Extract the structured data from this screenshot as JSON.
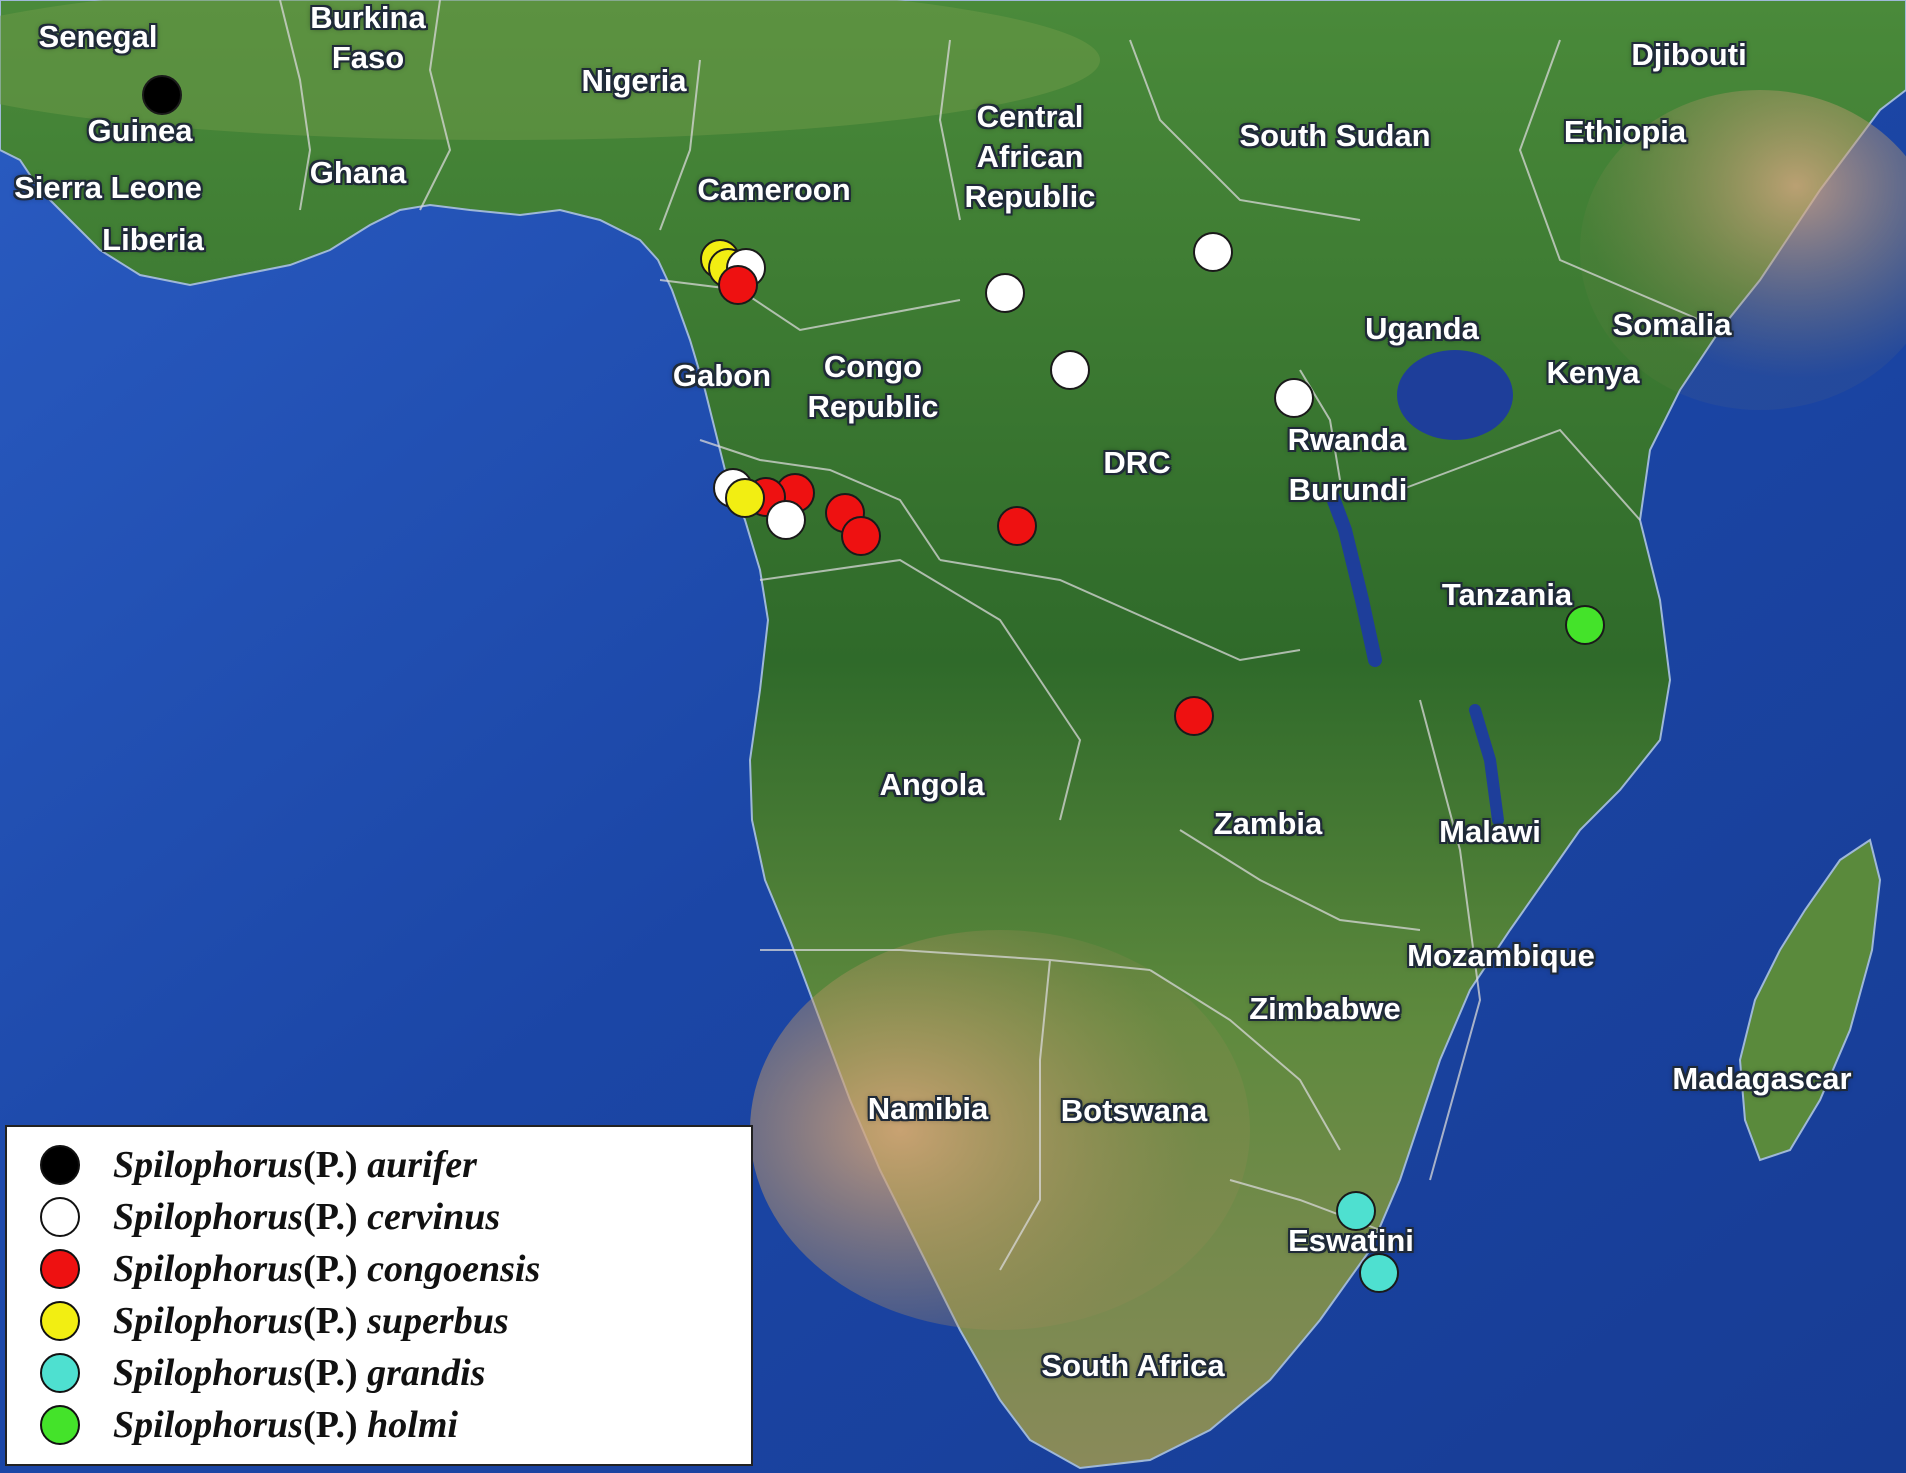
{
  "map": {
    "colors": {
      "ocean": "#1e48a8",
      "land": "#3f7a32",
      "desert": "#c8a27a",
      "border": "#d8d8d8"
    },
    "country_labels": [
      {
        "id": "senegal",
        "text": "Senegal"
      },
      {
        "id": "burkina-faso",
        "text": "Burkina\nFaso"
      },
      {
        "id": "nigeria",
        "text": "Nigeria"
      },
      {
        "id": "djibouti",
        "text": "Djibouti"
      },
      {
        "id": "guinea",
        "text": "Guinea"
      },
      {
        "id": "central-african-republic",
        "text": "Central\nAfrican\nRepublic"
      },
      {
        "id": "south-sudan",
        "text": "South Sudan"
      },
      {
        "id": "ethiopia",
        "text": "Ethiopia"
      },
      {
        "id": "sierra-leone",
        "text": "Sierra Leone"
      },
      {
        "id": "ghana",
        "text": "Ghana"
      },
      {
        "id": "cameroon",
        "text": "Cameroon"
      },
      {
        "id": "liberia",
        "text": "Liberia"
      },
      {
        "id": "uganda",
        "text": "Uganda"
      },
      {
        "id": "somalia",
        "text": "Somalia"
      },
      {
        "id": "gabon",
        "text": "Gabon"
      },
      {
        "id": "congo-republic",
        "text": "Congo\nRepublic"
      },
      {
        "id": "kenya",
        "text": "Kenya"
      },
      {
        "id": "rwanda",
        "text": "Rwanda"
      },
      {
        "id": "drc",
        "text": "DRC"
      },
      {
        "id": "burundi",
        "text": "Burundi"
      },
      {
        "id": "tanzania",
        "text": "Tanzania"
      },
      {
        "id": "angola",
        "text": "Angola"
      },
      {
        "id": "zambia",
        "text": "Zambia"
      },
      {
        "id": "malawi",
        "text": "Malawi"
      },
      {
        "id": "mozambique",
        "text": "Mozambique"
      },
      {
        "id": "zimbabwe",
        "text": "Zimbabwe"
      },
      {
        "id": "madagascar",
        "text": "Madagascar"
      },
      {
        "id": "namibia",
        "text": "Namibia"
      },
      {
        "id": "botswana",
        "text": "Botswana"
      },
      {
        "id": "eswatini",
        "text": "Eswatini"
      },
      {
        "id": "south-africa",
        "text": "South Africa"
      }
    ]
  },
  "species": [
    {
      "key": "aurifer",
      "genus": "Spilophorus",
      "subgenus": "(P.)",
      "epithet": "aurifer",
      "color": "#000000"
    },
    {
      "key": "cervinus",
      "genus": "Spilophorus",
      "subgenus": "(P.)",
      "epithet": "cervinus",
      "color": "#ffffff"
    },
    {
      "key": "congoensis",
      "genus": "Spilophorus",
      "subgenus": "(P.)",
      "epithet": "congoensis",
      "color": "#ee1111"
    },
    {
      "key": "superbus",
      "genus": "Spilophorus",
      "subgenus": "(P.)",
      "epithet": "superbus",
      "color": "#f2ee12"
    },
    {
      "key": "grandis",
      "genus": "Spilophorus",
      "subgenus": "(P.)",
      "epithet": "grandis",
      "color": "#4ee0d0"
    },
    {
      "key": "holmi",
      "genus": "Spilophorus",
      "subgenus": "(P.)",
      "epithet": "holmi",
      "color": "#44e32a"
    }
  ],
  "legend": {
    "rows": [
      {
        "genus": "Spilophorus",
        "subgenus": "(P.)",
        "epithet": "aurifer",
        "color": "#000000"
      },
      {
        "genus": "Spilophorus",
        "subgenus": "(P.)",
        "epithet": "cervinus",
        "color": "#ffffff"
      },
      {
        "genus": "Spilophorus",
        "subgenus": "(P.)",
        "epithet": "congoensis",
        "color": "#ee1111"
      },
      {
        "genus": "Spilophorus",
        "subgenus": "(P.)",
        "epithet": "superbus",
        "color": "#f2ee12"
      },
      {
        "genus": "Spilophorus",
        "subgenus": "(P.)",
        "epithet": "grandis",
        "color": "#4ee0d0"
      },
      {
        "genus": "Spilophorus",
        "subgenus": "(P.)",
        "epithet": "holmi",
        "color": "#44e32a"
      }
    ]
  }
}
